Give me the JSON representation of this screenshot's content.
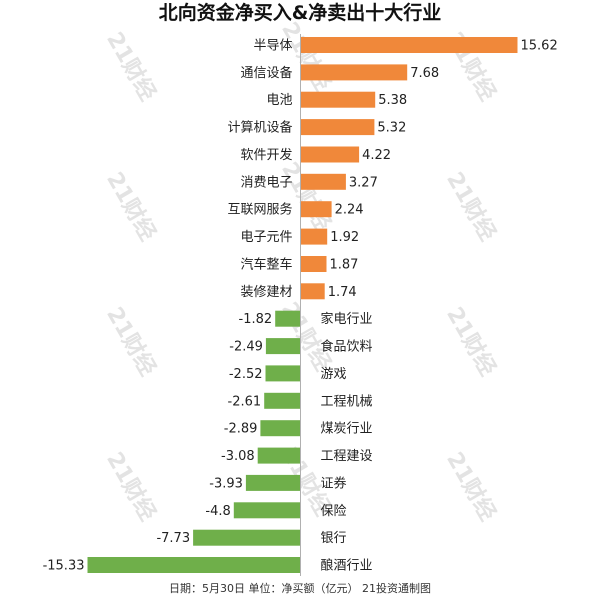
{
  "chart_data": {
    "type": "bar",
    "orientation": "horizontal",
    "title": "北向资金净买入&净卖出十大行业",
    "categories": [
      "半导体",
      "通信设备",
      "电池",
      "计算机设备",
      "软件开发",
      "消费电子",
      "互联网服务",
      "电子元件",
      "汽车整车",
      "装修建材",
      "家电行业",
      "食品饮料",
      "游戏",
      "工程机械",
      "煤炭行业",
      "工程建设",
      "证券",
      "保险",
      "银行",
      "酿酒行业"
    ],
    "values": [
      15.62,
      7.68,
      5.38,
      5.32,
      4.22,
      3.27,
      2.24,
      1.92,
      1.87,
      1.74,
      -1.82,
      -2.49,
      -2.52,
      -2.61,
      -2.89,
      -3.08,
      -3.93,
      -4.8,
      -7.73,
      -15.33
    ],
    "value_labels": [
      "15.62",
      "7.68",
      "5.38",
      "5.32",
      "4.22",
      "3.27",
      "2.24",
      "1.92",
      "1.87",
      "1.74",
      "-1.82",
      "-2.49",
      "-2.52",
      "-2.61",
      "-2.89",
      "-3.08",
      "-3.93",
      "-4.8",
      "-7.73",
      "-15.33"
    ],
    "xlim": [
      -15.33,
      15.62
    ],
    "positive_color": "#f0883a",
    "negative_color": "#6faf4a",
    "axis_color": "#b0b0b0",
    "footnote": "日期：5月30日 单位：净买额（亿元） 21投资通制图",
    "legend": "none",
    "grid": false
  },
  "watermark": {
    "text": "21财经",
    "color": "#d8d8d8"
  }
}
